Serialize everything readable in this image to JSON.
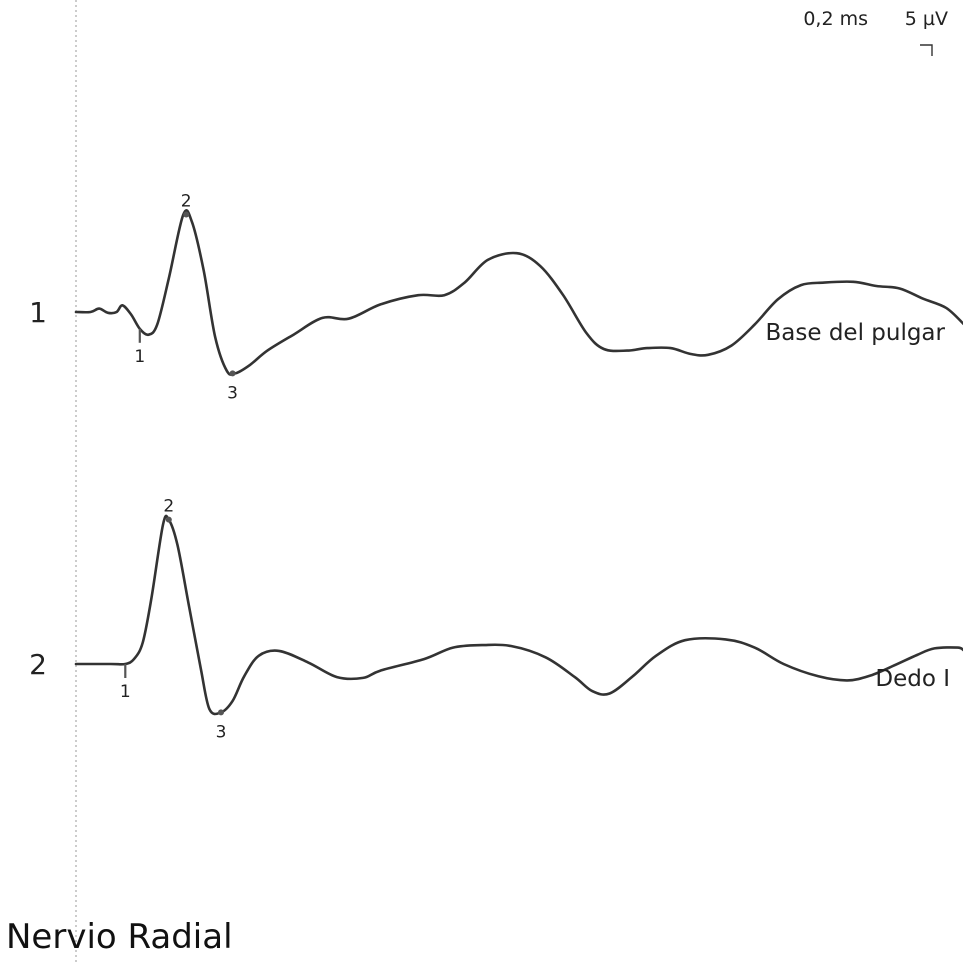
{
  "title": "Nervio Radial",
  "scale": {
    "time_label": "0,2 ms",
    "amplitude_label": "5 µV"
  },
  "chart_data": {
    "type": "line",
    "time_per_division_ms": 0.2,
    "amplitude_per_division_uV": 5,
    "traces": [
      {
        "number": "1",
        "label": "Base del pulgar",
        "samples": [
          [
            0.0,
            0.0
          ],
          [
            0.05,
            0.0
          ],
          [
            0.08,
            0.4
          ],
          [
            0.11,
            -0.1
          ],
          [
            0.14,
            0.0
          ],
          [
            0.16,
            0.8
          ],
          [
            0.19,
            -0.3
          ],
          [
            0.22,
            -2.0
          ],
          [
            0.25,
            -2.7
          ],
          [
            0.28,
            -1.5
          ],
          [
            0.32,
            4.0
          ],
          [
            0.37,
            11.6
          ],
          [
            0.4,
            10.7
          ],
          [
            0.44,
            5.0
          ],
          [
            0.48,
            -3.0
          ],
          [
            0.52,
            -7.0
          ],
          [
            0.55,
            -7.3
          ],
          [
            0.6,
            -6.3
          ],
          [
            0.66,
            -4.6
          ],
          [
            0.75,
            -2.7
          ],
          [
            0.85,
            -0.7
          ],
          [
            0.94,
            -0.8
          ],
          [
            1.05,
            0.9
          ],
          [
            1.18,
            2.0
          ],
          [
            1.27,
            2.0
          ],
          [
            1.34,
            3.5
          ],
          [
            1.42,
            6.2
          ],
          [
            1.52,
            7.0
          ],
          [
            1.6,
            5.5
          ],
          [
            1.68,
            2.0
          ],
          [
            1.76,
            -2.5
          ],
          [
            1.82,
            -4.4
          ],
          [
            1.9,
            -4.6
          ],
          [
            1.97,
            -4.3
          ],
          [
            2.05,
            -4.3
          ],
          [
            2.12,
            -5.0
          ],
          [
            2.18,
            -5.1
          ],
          [
            2.26,
            -4.0
          ],
          [
            2.34,
            -1.5
          ],
          [
            2.42,
            1.5
          ],
          [
            2.5,
            3.2
          ],
          [
            2.58,
            3.5
          ],
          [
            2.68,
            3.6
          ],
          [
            2.76,
            3.1
          ],
          [
            2.84,
            2.8
          ],
          [
            2.92,
            1.6
          ],
          [
            3.0,
            0.5
          ],
          [
            3.06,
            -1.4
          ]
        ],
        "markers": [
          {
            "label": "1",
            "t": 0.22,
            "value": -2.0
          },
          {
            "label": "2",
            "t": 0.38,
            "value": 11.6
          },
          {
            "label": "3",
            "t": 0.54,
            "value": -7.3
          }
        ]
      },
      {
        "number": "2",
        "label": "Dedo I",
        "samples": [
          [
            0.0,
            0.0
          ],
          [
            0.12,
            0.0
          ],
          [
            0.17,
            0.0
          ],
          [
            0.2,
            0.6
          ],
          [
            0.23,
            2.6
          ],
          [
            0.26,
            8.0
          ],
          [
            0.3,
            17.0
          ],
          [
            0.32,
            17.6
          ],
          [
            0.35,
            14.5
          ],
          [
            0.39,
            7.0
          ],
          [
            0.43,
            -0.5
          ],
          [
            0.46,
            -5.5
          ],
          [
            0.5,
            -5.9
          ],
          [
            0.54,
            -4.5
          ],
          [
            0.58,
            -1.5
          ],
          [
            0.63,
            1.0
          ],
          [
            0.7,
            1.6
          ],
          [
            0.8,
            0.2
          ],
          [
            0.9,
            -1.6
          ],
          [
            0.99,
            -1.7
          ],
          [
            1.05,
            -0.8
          ],
          [
            1.2,
            0.6
          ],
          [
            1.3,
            2.0
          ],
          [
            1.4,
            2.3
          ],
          [
            1.5,
            2.2
          ],
          [
            1.62,
            0.8
          ],
          [
            1.72,
            -1.6
          ],
          [
            1.78,
            -3.3
          ],
          [
            1.84,
            -3.6
          ],
          [
            1.92,
            -1.5
          ],
          [
            2.0,
            1.0
          ],
          [
            2.1,
            2.9
          ],
          [
            2.24,
            3.0
          ],
          [
            2.34,
            2.0
          ],
          [
            2.44,
            0.0
          ],
          [
            2.56,
            -1.5
          ],
          [
            2.66,
            -2.0
          ],
          [
            2.74,
            -1.4
          ],
          [
            2.82,
            -0.2
          ],
          [
            2.9,
            1.1
          ],
          [
            2.96,
            1.9
          ],
          [
            3.04,
            2.0
          ],
          [
            3.06,
            1.7
          ]
        ],
        "markers": [
          {
            "label": "1",
            "t": 0.17,
            "value": 0.0
          },
          {
            "label": "2",
            "t": 0.32,
            "value": 17.6
          },
          {
            "label": "3",
            "t": 0.5,
            "value": -5.9
          }
        ]
      }
    ]
  }
}
